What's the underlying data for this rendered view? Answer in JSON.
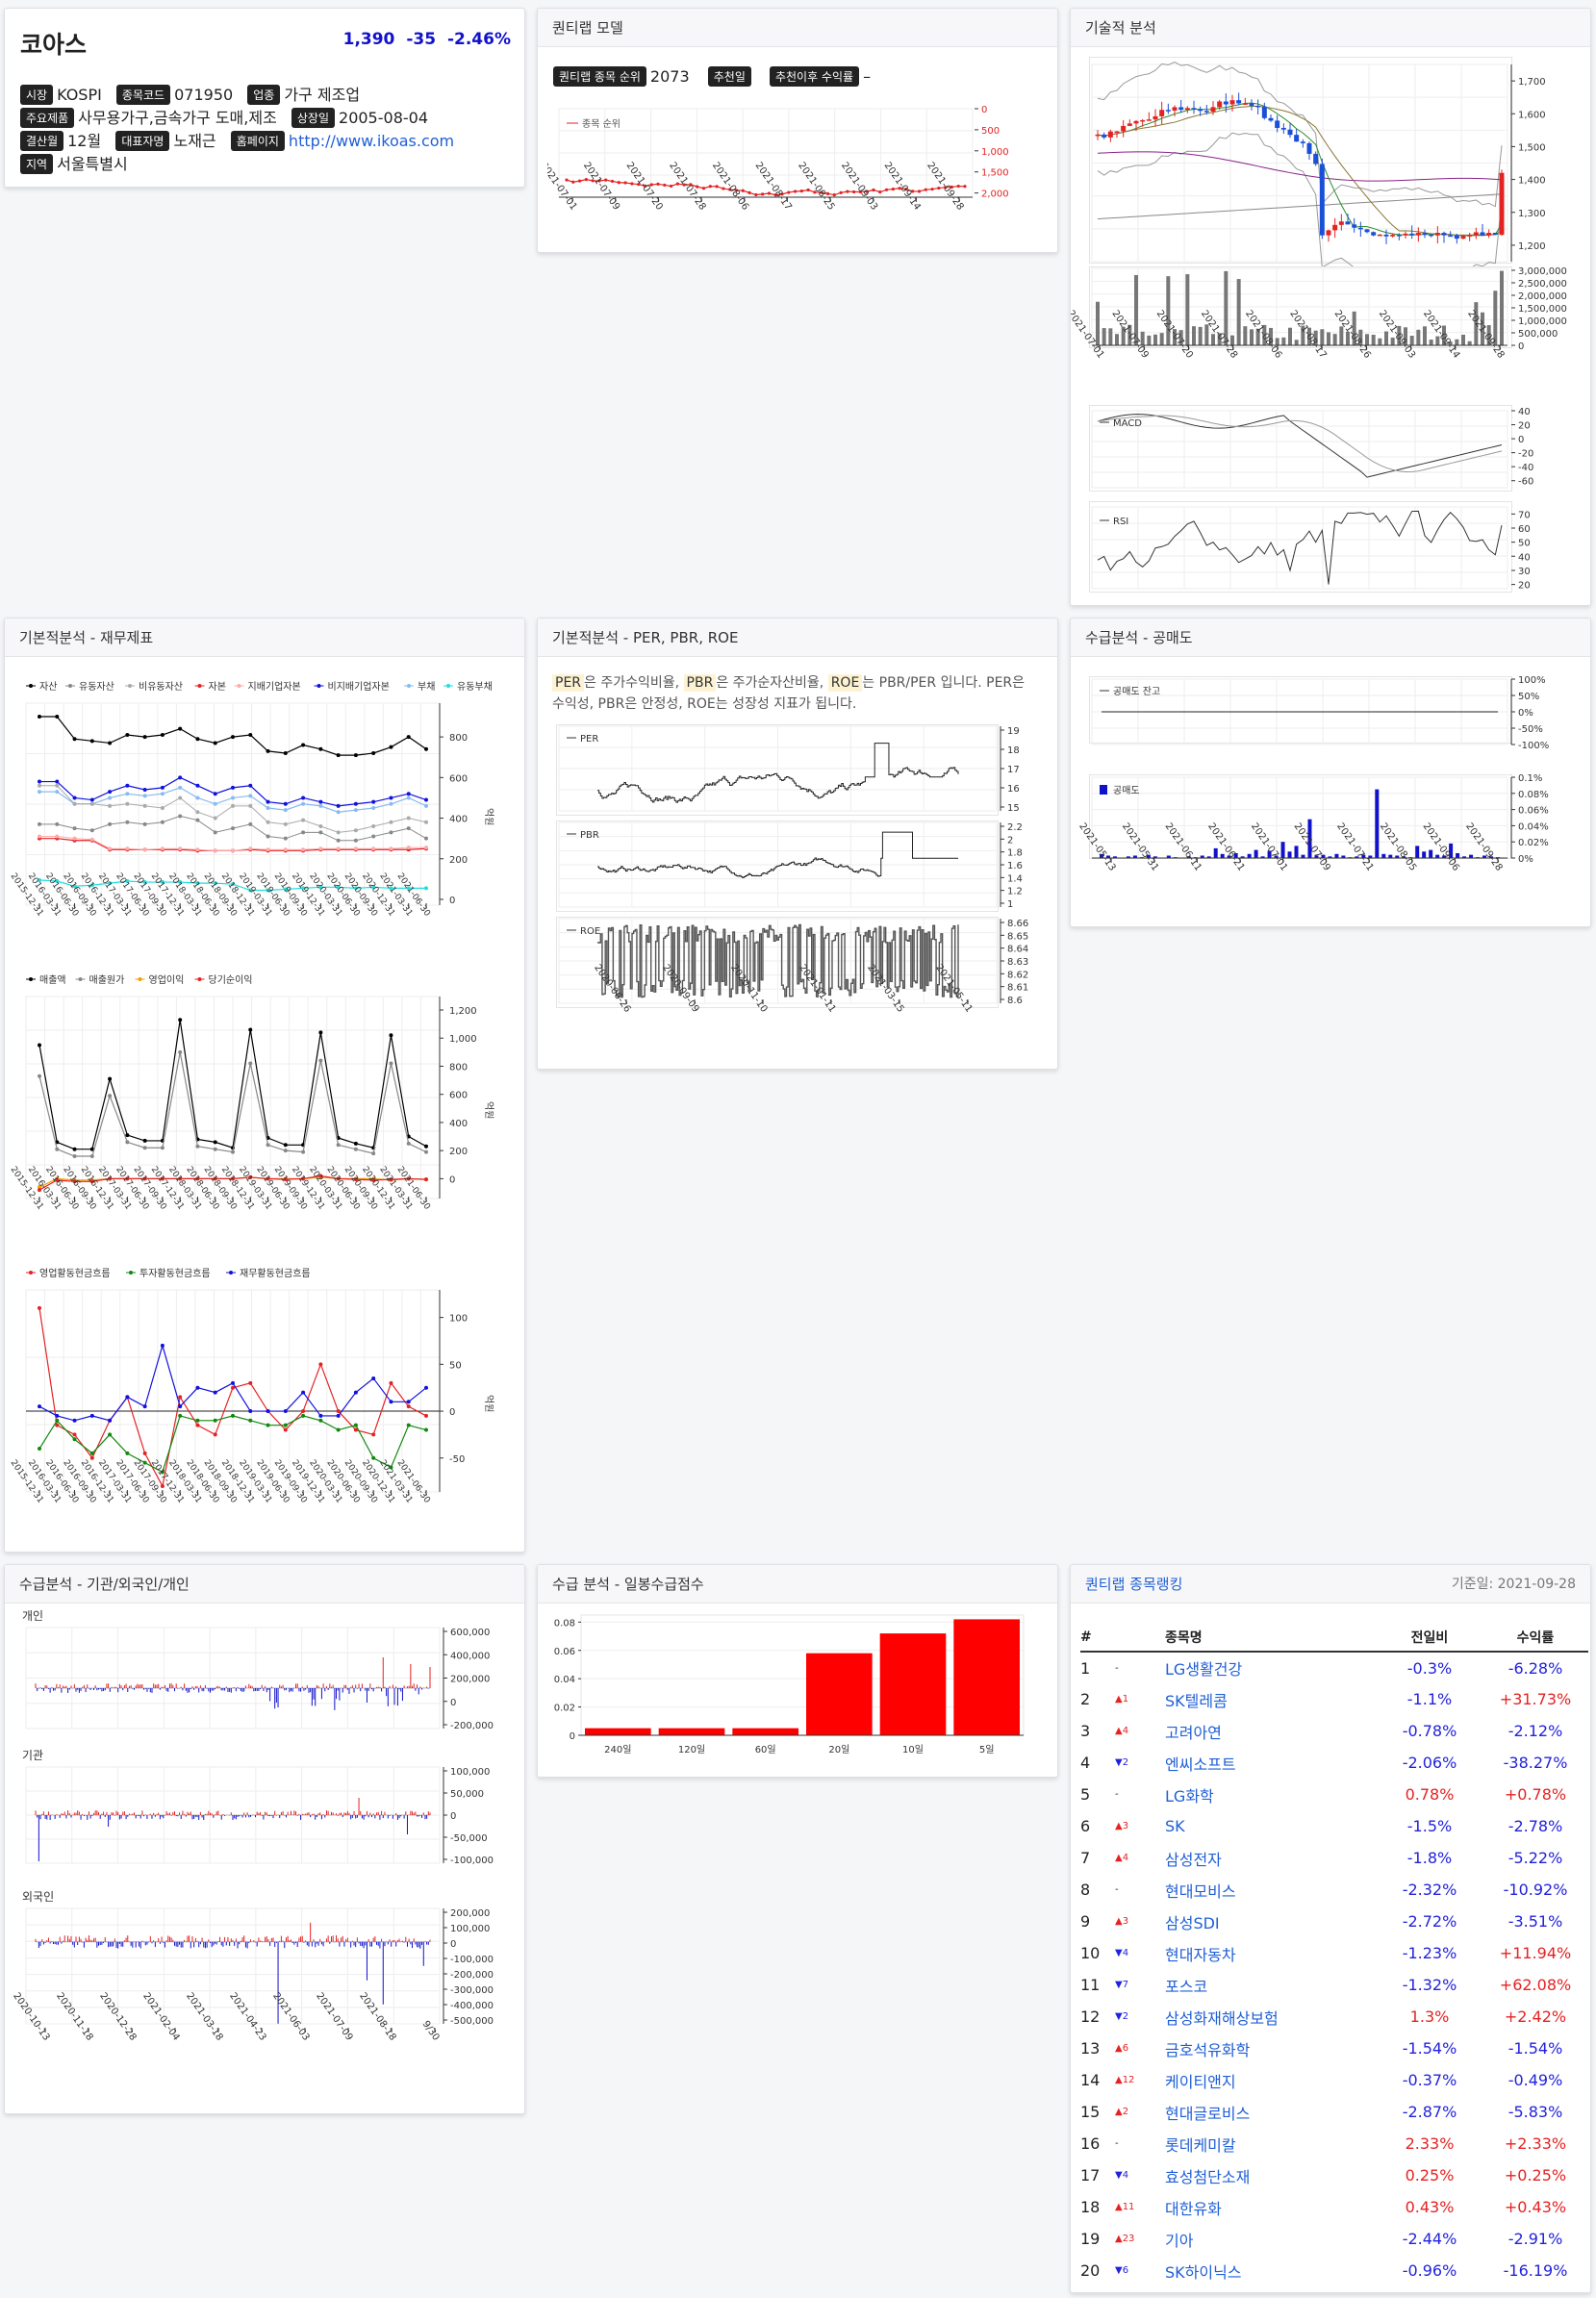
{
  "company": {
    "name": "코아스",
    "price": "1,390",
    "change": "-35",
    "change_pct": "-2.46%",
    "market_tag": "시장",
    "market": "KOSPI",
    "code_tag": "종목코드",
    "code": "071950",
    "industry_tag": "업종",
    "industry": "가구 제조업",
    "products_tag": "주요제품",
    "products": "사무용가구,금속가구 도매,제조",
    "listing_tag": "상장일",
    "listing": "2005-08-04",
    "fiscal_tag": "결산월",
    "fiscal": "12월",
    "ceo_tag": "대표자명",
    "ceo": "노재근",
    "home_tag": "홈페이지",
    "home": "http://www.ikoas.com",
    "region_tag": "지역",
    "region": "서울특별시"
  },
  "quant": {
    "title": "퀀티랩 모델",
    "rank_tag": "퀀티랩 종목 순위",
    "rank": "2073",
    "rec_tag": "추천일",
    "ret_tag": "추천이후 수익률",
    "ret": "–",
    "legend": "종목 순위",
    "yticks": [
      "0",
      "500",
      "1,000",
      "1,500",
      "2,000"
    ],
    "xticks": [
      "2021-07-01",
      "2021-07-09",
      "2021-07-20",
      "2021-07-28",
      "2021-08-06",
      "2021-08-17",
      "2021-08-25",
      "2021-09-03",
      "2021-09-14",
      "2021-09-28"
    ]
  },
  "tech": {
    "title": "기술적 분석",
    "price_ticks": [
      "1,700",
      "1,600",
      "1,500",
      "1,400",
      "1,300",
      "1,200"
    ],
    "vol_ticks": [
      "3,000,000",
      "2,500,000",
      "2,000,000",
      "1,500,000",
      "1,000,000",
      "500,000",
      "0"
    ],
    "xticks": [
      "2021-07-01",
      "2021-07-09",
      "2021-07-20",
      "2021-07-28",
      "2021-08-06",
      "2021-08-17",
      "2021-08-26",
      "2021-09-03",
      "2021-09-14",
      "2021-09-28"
    ],
    "macd_label": "MACD",
    "macd_ticks": [
      "40",
      "20",
      "0",
      "-20",
      "-40",
      "-60"
    ],
    "rsi_label": "RSI",
    "rsi_ticks": [
      "70",
      "60",
      "50",
      "40",
      "30",
      "20"
    ]
  },
  "fin": {
    "title": "기본적분석 - 재무제표",
    "legend1": [
      {
        "name": "자산",
        "color": "#000000"
      },
      {
        "name": "유동자산",
        "color": "#888888"
      },
      {
        "name": "비유동자산",
        "color": "#aaaaaa"
      },
      {
        "name": "자본",
        "color": "#e52222"
      },
      {
        "name": "지배기업자본",
        "color": "#ffaaaa"
      },
      {
        "name": "비지배기업자본",
        "color": "#1111dd"
      },
      {
        "name": "부채",
        "color": "#88bbee"
      },
      {
        "name": "유동부채",
        "color": "#22dddd"
      }
    ],
    "ticks1": [
      "800",
      "600",
      "400",
      "200",
      "0"
    ],
    "unit": "억원",
    "xticks": [
      "2015-12-31",
      "2016-03-31",
      "2016-06-30",
      "2016-09-30",
      "2016-12-31",
      "2017-03-31",
      "2017-06-30",
      "2017-09-30",
      "2017-12-31",
      "2018-03-31",
      "2018-06-30",
      "2018-09-30",
      "2018-12-31",
      "2019-03-31",
      "2019-06-30",
      "2019-09-30",
      "2019-12-31",
      "2020-03-31",
      "2020-06-30",
      "2020-09-30",
      "2020-12-31",
      "2021-03-31",
      "2021-06-30"
    ],
    "legend2": [
      {
        "name": "매출액",
        "color": "#000000"
      },
      {
        "name": "매출원가",
        "color": "#888888"
      },
      {
        "name": "영업이익",
        "color": "#f0a000"
      },
      {
        "name": "당기순이익",
        "color": "#e52222"
      }
    ],
    "ticks2": [
      "1,200",
      "1,000",
      "800",
      "600",
      "400",
      "200",
      "0"
    ],
    "legend3": [
      {
        "name": "영업활동현금흐름",
        "color": "#e52222"
      },
      {
        "name": "투자활동현금흐름",
        "color": "#118811"
      },
      {
        "name": "재무활동현금흐름",
        "color": "#1111dd"
      }
    ],
    "ticks3": [
      "100",
      "50",
      "0",
      "-50"
    ]
  },
  "val": {
    "title": "기본적분석 - PER, PBR, ROE",
    "per": "PER",
    "pbr": "PBR",
    "roe": "ROE",
    "d1": "은 주가수익비율, ",
    "d2": "은 주가순자산비율, ",
    "d3": "는 PBR/PER 입니다. PER은",
    "d4": "수익성, PBR은 안정성, ROE는 성장성 지표가 됩니다.",
    "per_ticks": [
      "19",
      "18",
      "17",
      "16",
      "15"
    ],
    "pbr_ticks": [
      "2.2",
      "2",
      "1.8",
      "1.6",
      "1.4",
      "1.2",
      "1"
    ],
    "roe_ticks": [
      "8.66",
      "8.65",
      "8.64",
      "8.63",
      "8.62",
      "8.61",
      "8.6"
    ],
    "xticks": [
      "2020-06-26",
      "2020-09-09",
      "2020-11-10",
      "2021-01-11",
      "2021-03-15",
      "2021-05-11"
    ]
  },
  "short": {
    "title": "수급분석 - 공매도",
    "bal_label": "공매도 잔고",
    "bal_ticks": [
      "100%",
      "50%",
      "0%",
      "-50%",
      "-100%"
    ],
    "vol_label": "공매도",
    "vol_ticks": [
      "0.1%",
      "0.08%",
      "0.06%",
      "0.04%",
      "0.02%",
      "0%"
    ],
    "xticks": [
      "2021-05-13",
      "2021-05-31",
      "2021-06-11",
      "2021-06-21",
      "2021-07-01",
      "2021-07-09",
      "2021-07-21",
      "2021-08-05",
      "2021-09-06",
      "2021-09-28"
    ]
  },
  "flow": {
    "title": "수급분석 - 기관/외국인/개인",
    "indiv": "개인",
    "inst": "기관",
    "foreign": "외국인",
    "indiv_ticks": [
      "600,000",
      "400,000",
      "200,000",
      "0",
      "-200,000"
    ],
    "inst_ticks": [
      "100,000",
      "50,000",
      "0",
      "-50,000",
      "-100,000"
    ],
    "foreign_ticks": [
      "200,000",
      "100,000",
      "0",
      "-100,000",
      "-200,000",
      "-300,000",
      "-400,000",
      "-500,000"
    ],
    "xticks": [
      "2020-10-13",
      "2020-11-18",
      "2020-12-28",
      "2021-02-04",
      "2021-03-18",
      "2021-04-23",
      "2021-06-03",
      "2021-07-09",
      "2021-08-18",
      "9/30"
    ]
  },
  "score": {
    "title": "수급 분석 - 일봉수급점수"
  },
  "ranking": {
    "title": "퀀티랩 종목랭킹",
    "date": "기준일: 2021-09-28",
    "headers": [
      "#",
      "종목명",
      "전일비",
      "수익률"
    ],
    "rows": [
      {
        "n": "1",
        "mv": "-",
        "dir": "none",
        "name": "LG생활건강",
        "chg": "-0.3%",
        "ret": "-6.28%"
      },
      {
        "n": "2",
        "mv": "▲1",
        "dir": "up",
        "name": "SK텔레콤",
        "chg": "-1.1%",
        "ret": "+31.73%"
      },
      {
        "n": "3",
        "mv": "▲4",
        "dir": "up",
        "name": "고려아연",
        "chg": "-0.78%",
        "ret": "-2.12%"
      },
      {
        "n": "4",
        "mv": "▼2",
        "dir": "dn",
        "name": "엔씨소프트",
        "chg": "-2.06%",
        "ret": "-38.27%"
      },
      {
        "n": "5",
        "mv": "-",
        "dir": "none",
        "name": "LG화학",
        "chg": "0.78%",
        "ret": "+0.78%"
      },
      {
        "n": "6",
        "mv": "▲3",
        "dir": "up",
        "name": "SK",
        "chg": "-1.5%",
        "ret": "-2.78%"
      },
      {
        "n": "7",
        "mv": "▲4",
        "dir": "up",
        "name": "삼성전자",
        "chg": "-1.8%",
        "ret": "-5.22%"
      },
      {
        "n": "8",
        "mv": "-",
        "dir": "none",
        "name": "현대모비스",
        "chg": "-2.32%",
        "ret": "-10.92%"
      },
      {
        "n": "9",
        "mv": "▲3",
        "dir": "up",
        "name": "삼성SDI",
        "chg": "-2.72%",
        "ret": "-3.51%"
      },
      {
        "n": "10",
        "mv": "▼4",
        "dir": "dn",
        "name": "현대자동차",
        "chg": "-1.23%",
        "ret": "+11.94%"
      },
      {
        "n": "11",
        "mv": "▼7",
        "dir": "dn",
        "name": "포스코",
        "chg": "-1.32%",
        "ret": "+62.08%"
      },
      {
        "n": "12",
        "mv": "▼2",
        "dir": "dn",
        "name": "삼성화재해상보험",
        "chg": "1.3%",
        "ret": "+2.42%"
      },
      {
        "n": "13",
        "mv": "▲6",
        "dir": "up",
        "name": "금호석유화학",
        "chg": "-1.54%",
        "ret": "-1.54%"
      },
      {
        "n": "14",
        "mv": "▲12",
        "dir": "up",
        "name": "케이티앤지",
        "chg": "-0.37%",
        "ret": "-0.49%"
      },
      {
        "n": "15",
        "mv": "▲2",
        "dir": "up",
        "name": "현대글로비스",
        "chg": "-2.87%",
        "ret": "-5.83%"
      },
      {
        "n": "16",
        "mv": "-",
        "dir": "none",
        "name": "롯데케미칼",
        "chg": "2.33%",
        "ret": "+2.33%"
      },
      {
        "n": "17",
        "mv": "▼4",
        "dir": "dn",
        "name": "효성첨단소재",
        "chg": "0.25%",
        "ret": "+0.25%"
      },
      {
        "n": "18",
        "mv": "▲11",
        "dir": "up",
        "name": "대한유화",
        "chg": "0.43%",
        "ret": "+0.43%"
      },
      {
        "n": "19",
        "mv": "▲23",
        "dir": "up",
        "name": "기아",
        "chg": "-2.44%",
        "ret": "-2.91%"
      },
      {
        "n": "20",
        "mv": "▼6",
        "dir": "dn",
        "name": "SK하이닉스",
        "chg": "-0.96%",
        "ret": "-16.19%"
      }
    ]
  },
  "chart_data": [
    {
      "type": "bar",
      "title": "수급 분석 - 일봉수급점수",
      "categories": [
        "240일",
        "120일",
        "60일",
        "20일",
        "10일",
        "5일"
      ],
      "values": [
        0.005,
        0.005,
        0.005,
        0.058,
        0.072,
        0.082
      ],
      "ylim": [
        0,
        0.085
      ],
      "yticks": [
        "0.08",
        "0.06",
        "0.04",
        "0.02",
        "0"
      ]
    },
    {
      "type": "line",
      "title": "기본적분석 - 재무제표",
      "series": [
        {
          "name": "자산",
          "values": [
            900,
            900,
            790,
            780,
            770,
            810,
            800,
            810,
            840,
            790,
            770,
            800,
            810,
            730,
            720,
            760,
            740,
            710,
            710,
            720,
            750,
            800,
            740
          ]
        },
        {
          "name": "비지배기업자본",
          "values": [
            580,
            580,
            500,
            490,
            530,
            560,
            540,
            550,
            600,
            560,
            520,
            550,
            560,
            480,
            470,
            500,
            480,
            460,
            470,
            480,
            500,
            520,
            490
          ]
        },
        {
          "name": "부채",
          "values": [
            530,
            530,
            470,
            470,
            500,
            520,
            510,
            520,
            550,
            500,
            470,
            500,
            510,
            450,
            440,
            470,
            460,
            430,
            440,
            450,
            470,
            500,
            460
          ]
        },
        {
          "name": "자본",
          "values": [
            300,
            300,
            290,
            290,
            245,
            245,
            245,
            245,
            245,
            240,
            240,
            240,
            245,
            240,
            240,
            240,
            245,
            245,
            245,
            245,
            245,
            245,
            250
          ]
        },
        {
          "name": "유동부채",
          "values": [
            95,
            90,
            65,
            70,
            80,
            90,
            85,
            85,
            85,
            80,
            80,
            75,
            45,
            45,
            50,
            55,
            60,
            60,
            55,
            60,
            55,
            55,
            55
          ]
        }
      ]
    },
    {
      "type": "line",
      "series": [
        {
          "name": "매출액",
          "values": [
            950,
            260,
            210,
            210,
            710,
            310,
            270,
            270,
            1130,
            280,
            260,
            220,
            1060,
            290,
            240,
            240,
            1040,
            290,
            250,
            220,
            1020,
            300,
            230
          ]
        },
        {
          "name": "매출원가",
          "values": [
            730,
            210,
            160,
            160,
            590,
            260,
            220,
            220,
            900,
            230,
            210,
            190,
            820,
            240,
            200,
            190,
            840,
            240,
            210,
            180,
            820,
            250,
            190
          ]
        },
        {
          "name": "영업이익",
          "values": [
            -60,
            0,
            -10,
            -10,
            0,
            0,
            0,
            0,
            0,
            0,
            0,
            0,
            10,
            0,
            0,
            0,
            10,
            0,
            0,
            0,
            -10,
            0,
            -5
          ]
        },
        {
          "name": "당기순이익",
          "values": [
            -80,
            -10,
            -20,
            -20,
            0,
            0,
            0,
            0,
            0,
            0,
            0,
            0,
            10,
            0,
            -5,
            0,
            20,
            0,
            -5,
            -10,
            -5,
            0,
            -5
          ]
        }
      ]
    },
    {
      "type": "line",
      "series": [
        {
          "name": "영업활동현금흐름",
          "values": [
            110,
            -15,
            -25,
            -50,
            -10,
            15,
            -45,
            -80,
            15,
            -15,
            -25,
            25,
            30,
            0,
            -20,
            0,
            50,
            0,
            -20,
            -25,
            30,
            5,
            -5
          ]
        },
        {
          "name": "투자활동현금흐름",
          "values": [
            -40,
            -10,
            -30,
            -45,
            -25,
            -45,
            -55,
            -65,
            -5,
            -10,
            -10,
            -5,
            -10,
            -15,
            -15,
            -5,
            -10,
            -20,
            -15,
            -50,
            -60,
            -15,
            -20
          ]
        },
        {
          "name": "재무활동현금흐름",
          "values": [
            5,
            -5,
            -10,
            -5,
            -10,
            15,
            5,
            70,
            5,
            25,
            20,
            30,
            0,
            0,
            0,
            20,
            -5,
            -5,
            20,
            35,
            10,
            10,
            25
          ]
        }
      ]
    }
  ]
}
